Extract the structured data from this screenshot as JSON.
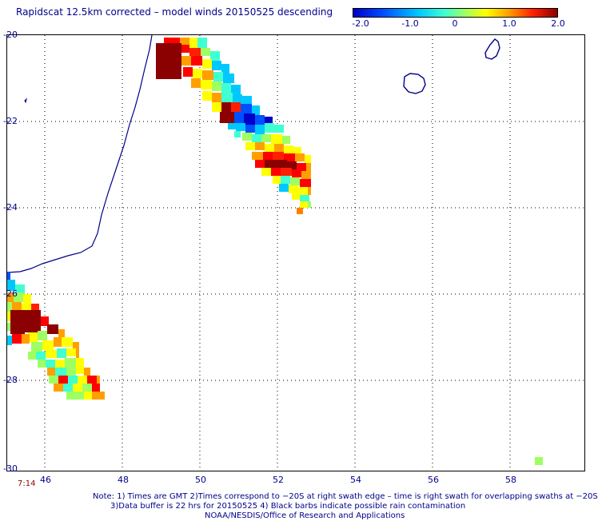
{
  "title": "Rapidscat 12.5km corrected – model winds 20150525 descending",
  "colorbar": {
    "ticks": [
      "-2.0",
      "-1.0",
      "0",
      "1.0",
      "2.0"
    ],
    "min": -2.0,
    "max": 2.0
  },
  "map": {
    "lon_range": [
      45,
      59.8
    ],
    "lat_range": [
      -30,
      -20
    ],
    "lat_labels": [
      "-20",
      "-22",
      "-24",
      "-26",
      "-28",
      "-30"
    ],
    "lon_labels": [
      "46",
      "48",
      "50",
      "52",
      "54",
      "56",
      "58"
    ],
    "time_label": "7:14",
    "coast_color": "#00008b",
    "grid_color": "#000000"
  },
  "note": {
    "line1": "Note: 1) Times are GMT 2)Times correspond to −20S at right swath edge – time is right swath for overlapping swaths at −20S",
    "line2": "3)Data buffer is 22 hrs for 20150525 4) Black barbs indicate possible rain contamination",
    "line3": "NOAA/NESDIS/Office of Research and Applications"
  }
}
